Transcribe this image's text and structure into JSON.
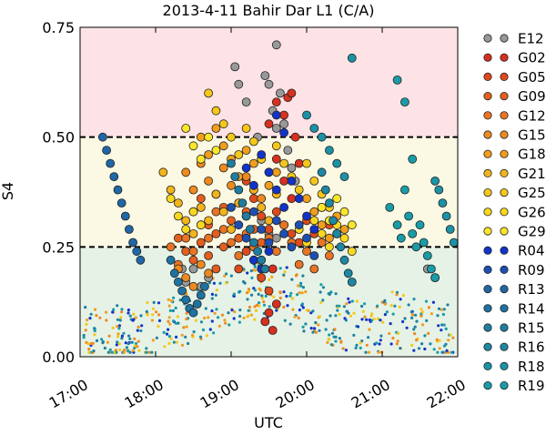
{
  "chart_data": {
    "type": "scatter",
    "title": "2013-4-11 Bahir Dar L1 (C/A)",
    "xlabel": "UTC",
    "ylabel": "S4",
    "x_range_hours": [
      17,
      22
    ],
    "ylim": [
      0,
      0.75
    ],
    "x_ticks": [
      {
        "value": 17,
        "label": "17:00"
      },
      {
        "value": 18,
        "label": "18:00"
      },
      {
        "value": 19,
        "label": "19:00"
      },
      {
        "value": 20,
        "label": "20:00"
      },
      {
        "value": 21,
        "label": "21:00"
      },
      {
        "value": 22,
        "label": "22:00"
      }
    ],
    "y_ticks": [
      {
        "value": 0,
        "label": "0.00"
      },
      {
        "value": 0.25,
        "label": "0.25"
      },
      {
        "value": 0.5,
        "label": "0.50"
      },
      {
        "value": 0.75,
        "label": "0.75"
      }
    ],
    "background_bands": [
      {
        "from": 0,
        "to": 0.25,
        "color": "#e6f2e6"
      },
      {
        "from": 0.25,
        "to": 0.5,
        "color": "#fbf8e3"
      },
      {
        "from": 0.5,
        "to": 0.75,
        "color": "#fde3e5"
      }
    ],
    "threshold_lines": [
      0.25,
      0.5
    ],
    "legend_position": "right",
    "series": [
      {
        "name": "E12",
        "color": "#999999"
      },
      {
        "name": "G02",
        "color": "#d7301f"
      },
      {
        "name": "G05",
        "color": "#df4a1c"
      },
      {
        "name": "G09",
        "color": "#e45f1e"
      },
      {
        "name": "G12",
        "color": "#e87424"
      },
      {
        "name": "G15",
        "color": "#ed8a1e"
      },
      {
        "name": "G18",
        "color": "#f09e1c"
      },
      {
        "name": "G21",
        "color": "#f2b41c"
      },
      {
        "name": "G25",
        "color": "#f5c71a"
      },
      {
        "name": "G26",
        "color": "#f7d81e"
      },
      {
        "name": "G29",
        "color": "#f9e62a"
      },
      {
        "name": "R04",
        "color": "#1233c9"
      },
      {
        "name": "R09",
        "color": "#1d4fb4"
      },
      {
        "name": "R13",
        "color": "#1f67a6"
      },
      {
        "name": "R14",
        "color": "#1e73a2"
      },
      {
        "name": "R15",
        "color": "#1e7ea1"
      },
      {
        "name": "R16",
        "color": "#1c88a3"
      },
      {
        "name": "R18",
        "color": "#1b92a6"
      },
      {
        "name": "R19",
        "color": "#1a9ca8"
      }
    ],
    "points": {
      "E12": [
        [
          19.05,
          0.66
        ],
        [
          19.1,
          0.62
        ],
        [
          19.2,
          0.58
        ],
        [
          19.35,
          0.5
        ],
        [
          19.4,
          0.45
        ],
        [
          19.5,
          0.62
        ],
        [
          19.55,
          0.56
        ],
        [
          19.6,
          0.52
        ],
        [
          19.65,
          0.6
        ],
        [
          19.7,
          0.53
        ],
        [
          19.75,
          0.47
        ],
        [
          19.8,
          0.43
        ],
        [
          19.85,
          0.4
        ],
        [
          19.4,
          0.31
        ],
        [
          19.5,
          0.28
        ],
        [
          19.6,
          0.27
        ],
        [
          18.35,
          0.2
        ],
        [
          18.4,
          0.17
        ],
        [
          18.5,
          0.2
        ],
        [
          18.6,
          0.16
        ],
        [
          18.7,
          0.18
        ],
        [
          21.6,
          0.2
        ],
        [
          21.7,
          0.18
        ],
        [
          19.6,
          0.71
        ],
        [
          19.45,
          0.64
        ]
      ],
      "G02": [
        [
          19.5,
          0.53
        ],
        [
          19.6,
          0.58
        ],
        [
          19.7,
          0.55
        ],
        [
          19.75,
          0.59
        ],
        [
          19.8,
          0.6
        ],
        [
          19.85,
          0.5
        ],
        [
          19.9,
          0.44
        ],
        [
          19.6,
          0.45
        ],
        [
          19.7,
          0.4
        ],
        [
          19.8,
          0.36
        ],
        [
          19.55,
          0.2
        ],
        [
          19.5,
          0.1
        ],
        [
          19.6,
          0.12
        ],
        [
          19.45,
          0.08
        ],
        [
          19.55,
          0.06
        ]
      ],
      "G05": [
        [
          19.2,
          0.4
        ],
        [
          19.3,
          0.36
        ],
        [
          19.4,
          0.32
        ],
        [
          19.5,
          0.29
        ],
        [
          19.1,
          0.2
        ],
        [
          19.2,
          0.24
        ],
        [
          19.3,
          0.22
        ],
        [
          19.4,
          0.18
        ],
        [
          19.5,
          0.15
        ],
        [
          19.6,
          0.33
        ],
        [
          19.7,
          0.3
        ],
        [
          19.8,
          0.28
        ],
        [
          19.9,
          0.26
        ],
        [
          20.0,
          0.31
        ],
        [
          20.1,
          0.28
        ],
        [
          20.2,
          0.34
        ],
        [
          20.3,
          0.3
        ]
      ],
      "G09": [
        [
          18.5,
          0.33
        ],
        [
          18.6,
          0.36
        ],
        [
          18.7,
          0.3
        ],
        [
          18.8,
          0.28
        ],
        [
          18.9,
          0.34
        ],
        [
          19.0,
          0.31
        ],
        [
          19.1,
          0.27
        ],
        [
          19.2,
          0.33
        ],
        [
          19.3,
          0.29
        ],
        [
          19.4,
          0.26
        ],
        [
          18.3,
          0.27
        ],
        [
          18.4,
          0.24
        ],
        [
          18.5,
          0.22
        ],
        [
          18.6,
          0.26
        ],
        [
          18.7,
          0.23
        ],
        [
          18.8,
          0.2
        ],
        [
          18.9,
          0.25
        ]
      ],
      "G12": [
        [
          18.2,
          0.25
        ],
        [
          18.3,
          0.21
        ],
        [
          18.4,
          0.27
        ],
        [
          18.5,
          0.24
        ],
        [
          18.6,
          0.3
        ],
        [
          18.7,
          0.27
        ],
        [
          18.8,
          0.33
        ],
        [
          18.9,
          0.29
        ],
        [
          19.0,
          0.26
        ],
        [
          19.1,
          0.23
        ],
        [
          19.2,
          0.28
        ],
        [
          19.3,
          0.25
        ],
        [
          19.4,
          0.22
        ],
        [
          19.5,
          0.27
        ],
        [
          19.6,
          0.24
        ],
        [
          19.7,
          0.3
        ],
        [
          19.8,
          0.26
        ],
        [
          19.9,
          0.21
        ],
        [
          20.0,
          0.24
        ],
        [
          20.1,
          0.2
        ],
        [
          20.2,
          0.26
        ],
        [
          20.3,
          0.23
        ],
        [
          20.4,
          0.28
        ]
      ],
      "G15": [
        [
          18.4,
          0.42
        ],
        [
          18.5,
          0.38
        ],
        [
          18.6,
          0.44
        ],
        [
          18.7,
          0.4
        ],
        [
          18.8,
          0.37
        ],
        [
          18.9,
          0.43
        ],
        [
          19.0,
          0.39
        ],
        [
          19.1,
          0.35
        ],
        [
          19.2,
          0.41
        ],
        [
          19.3,
          0.38
        ],
        [
          19.4,
          0.36
        ],
        [
          18.3,
          0.2
        ],
        [
          18.4,
          0.18
        ],
        [
          18.5,
          0.16
        ],
        [
          18.6,
          0.21
        ],
        [
          18.7,
          0.19
        ]
      ],
      "G18": [
        [
          18.6,
          0.5
        ],
        [
          18.7,
          0.46
        ],
        [
          18.8,
          0.52
        ],
        [
          18.9,
          0.48
        ],
        [
          19.0,
          0.45
        ],
        [
          19.1,
          0.41
        ],
        [
          19.2,
          0.47
        ],
        [
          19.3,
          0.44
        ],
        [
          19.5,
          0.39
        ],
        [
          19.6,
          0.42
        ],
        [
          20.0,
          0.36
        ],
        [
          20.1,
          0.33
        ],
        [
          20.2,
          0.3
        ],
        [
          20.3,
          0.27
        ],
        [
          20.4,
          0.32
        ],
        [
          20.5,
          0.29
        ]
      ],
      "G21": [
        [
          18.1,
          0.42
        ],
        [
          18.2,
          0.38
        ],
        [
          18.3,
          0.35
        ],
        [
          18.4,
          0.31
        ],
        [
          18.5,
          0.28
        ],
        [
          18.6,
          0.34
        ],
        [
          18.7,
          0.31
        ],
        [
          18.8,
          0.37
        ],
        [
          18.9,
          0.33
        ],
        [
          19.0,
          0.29
        ],
        [
          19.1,
          0.35
        ],
        [
          19.2,
          0.32
        ],
        [
          19.3,
          0.38
        ],
        [
          19.4,
          0.34
        ],
        [
          19.5,
          0.31
        ],
        [
          19.6,
          0.37
        ]
      ],
      "G25": [
        [
          18.7,
          0.6
        ],
        [
          18.8,
          0.56
        ],
        [
          18.9,
          0.53
        ],
        [
          19.0,
          0.5
        ],
        [
          19.1,
          0.46
        ],
        [
          19.2,
          0.52
        ],
        [
          19.3,
          0.49
        ],
        [
          19.4,
          0.45
        ],
        [
          19.5,
          0.42
        ],
        [
          19.6,
          0.48
        ],
        [
          19.7,
          0.44
        ],
        [
          19.8,
          0.41
        ],
        [
          19.9,
          0.38
        ],
        [
          20.0,
          0.44
        ],
        [
          20.1,
          0.4
        ],
        [
          20.2,
          0.37
        ],
        [
          20.3,
          0.34
        ]
      ],
      "G26": [
        [
          18.2,
          0.36
        ],
        [
          18.3,
          0.32
        ],
        [
          18.4,
          0.29
        ],
        [
          18.5,
          0.33
        ],
        [
          18.6,
          0.3
        ],
        [
          19.9,
          0.29
        ],
        [
          20.0,
          0.26
        ],
        [
          20.1,
          0.31
        ],
        [
          20.2,
          0.28
        ],
        [
          20.3,
          0.25
        ],
        [
          20.4,
          0.3
        ],
        [
          20.5,
          0.27
        ],
        [
          20.6,
          0.24
        ]
      ],
      "G29": [
        [
          18.4,
          0.52
        ],
        [
          18.5,
          0.48
        ],
        [
          18.6,
          0.45
        ],
        [
          18.7,
          0.5
        ],
        [
          18.8,
          0.47
        ],
        [
          20.2,
          0.34
        ],
        [
          20.3,
          0.31
        ],
        [
          20.4,
          0.36
        ],
        [
          20.5,
          0.33
        ],
        [
          20.6,
          0.3
        ]
      ],
      "R04": [
        [
          19.2,
          0.43
        ],
        [
          19.3,
          0.39
        ],
        [
          19.4,
          0.46
        ],
        [
          19.5,
          0.42
        ],
        [
          19.6,
          0.38
        ],
        [
          19.7,
          0.34
        ],
        [
          19.8,
          0.4
        ],
        [
          19.9,
          0.36
        ],
        [
          20.0,
          0.32
        ],
        [
          20.1,
          0.29
        ],
        [
          19.3,
          0.22
        ],
        [
          19.4,
          0.2
        ],
        [
          19.5,
          0.24
        ],
        [
          19.6,
          0.55
        ],
        [
          19.7,
          0.51
        ]
      ],
      "R09": [
        [
          19.0,
          0.34
        ],
        [
          19.1,
          0.3
        ],
        [
          19.2,
          0.27
        ],
        [
          19.3,
          0.33
        ],
        [
          19.4,
          0.29
        ],
        [
          19.5,
          0.26
        ],
        [
          19.6,
          0.31
        ],
        [
          19.7,
          0.28
        ],
        [
          19.8,
          0.25
        ],
        [
          19.9,
          0.3
        ],
        [
          20.0,
          0.27
        ],
        [
          20.1,
          0.23
        ]
      ],
      "R13": [
        [
          17.3,
          0.5
        ],
        [
          17.35,
          0.47
        ],
        [
          17.4,
          0.44
        ],
        [
          17.45,
          0.41
        ],
        [
          17.5,
          0.38
        ],
        [
          17.55,
          0.35
        ],
        [
          17.6,
          0.32
        ],
        [
          17.65,
          0.29
        ],
        [
          17.7,
          0.26
        ],
        [
          17.75,
          0.24
        ],
        [
          17.8,
          0.22
        ]
      ],
      "R14": [
        [
          18.2,
          0.22
        ],
        [
          18.25,
          0.19
        ],
        [
          18.3,
          0.17
        ],
        [
          18.35,
          0.15
        ],
        [
          18.4,
          0.13
        ],
        [
          18.45,
          0.11
        ],
        [
          18.5,
          0.1
        ],
        [
          18.55,
          0.12
        ],
        [
          18.6,
          0.14
        ],
        [
          18.65,
          0.16
        ]
      ],
      "R15": [
        [
          19.0,
          0.44
        ],
        [
          19.05,
          0.41
        ],
        [
          19.1,
          0.38
        ],
        [
          19.15,
          0.35
        ],
        [
          19.2,
          0.32
        ],
        [
          19.25,
          0.29
        ],
        [
          19.3,
          0.26
        ],
        [
          19.35,
          0.24
        ],
        [
          19.4,
          0.22
        ],
        [
          19.45,
          0.2
        ]
      ],
      "R16": [
        [
          20.2,
          0.42
        ],
        [
          20.25,
          0.38
        ],
        [
          20.3,
          0.35
        ],
        [
          20.35,
          0.31
        ],
        [
          20.4,
          0.28
        ],
        [
          20.45,
          0.25
        ],
        [
          20.5,
          0.22
        ],
        [
          20.55,
          0.19
        ],
        [
          20.6,
          0.17
        ]
      ],
      "R18": [
        [
          20.0,
          0.55
        ],
        [
          20.1,
          0.52
        ],
        [
          20.2,
          0.5
        ],
        [
          20.3,
          0.47
        ],
        [
          20.4,
          0.44
        ],
        [
          20.5,
          0.41
        ],
        [
          20.6,
          0.68
        ],
        [
          21.7,
          0.4
        ],
        [
          21.75,
          0.38
        ],
        [
          21.8,
          0.35
        ],
        [
          21.85,
          0.32
        ],
        [
          21.9,
          0.29
        ],
        [
          21.95,
          0.26
        ]
      ],
      "R19": [
        [
          21.1,
          0.34
        ],
        [
          21.2,
          0.3
        ],
        [
          21.25,
          0.27
        ],
        [
          21.3,
          0.38
        ],
        [
          21.35,
          0.32
        ],
        [
          21.4,
          0.28
        ],
        [
          21.45,
          0.25
        ],
        [
          21.5,
          0.3
        ],
        [
          21.55,
          0.26
        ],
        [
          21.6,
          0.23
        ],
        [
          21.65,
          0.2
        ],
        [
          21.7,
          0.18
        ],
        [
          21.2,
          0.63
        ],
        [
          21.3,
          0.58
        ],
        [
          21.4,
          0.45
        ]
      ]
    }
  }
}
